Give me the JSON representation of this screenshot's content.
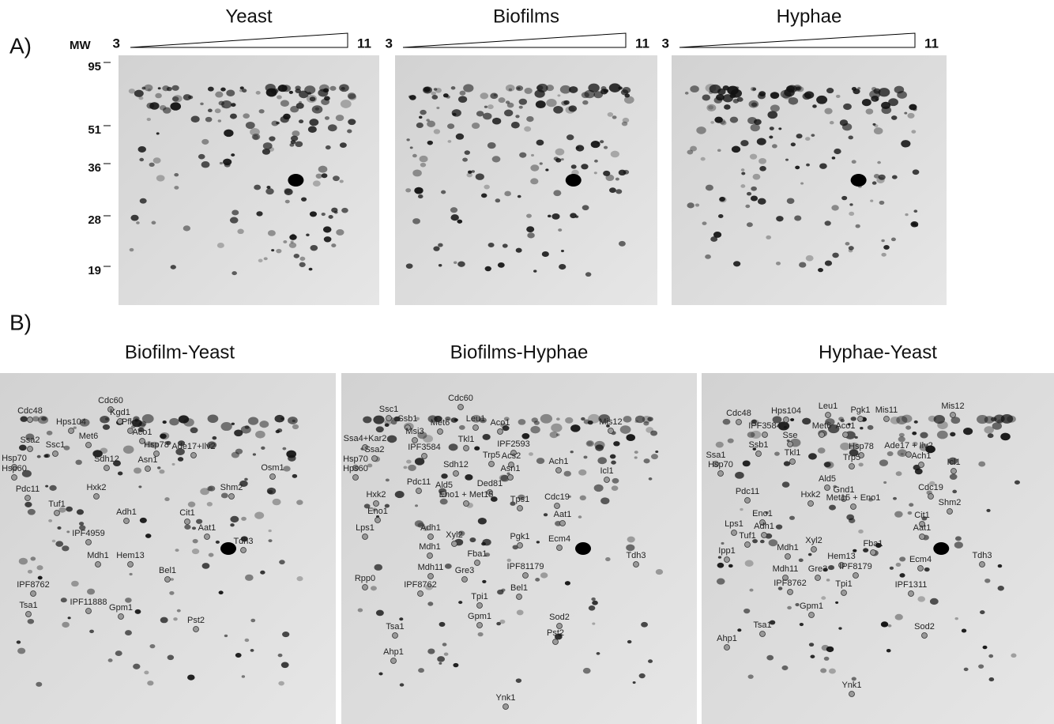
{
  "panel_a": {
    "label": "A)",
    "mw_label": "MW",
    "mw_markers": [
      "95",
      "51",
      "36",
      "28",
      "19"
    ],
    "gels": [
      {
        "title": "Yeast",
        "ph_start": "3",
        "ph_end": "11"
      },
      {
        "title": "Biofilms",
        "ph_start": "3",
        "ph_end": "11"
      },
      {
        "title": "Hyphae",
        "ph_start": "3",
        "ph_end": "11"
      }
    ]
  },
  "panel_b": {
    "label": "B)",
    "gels": [
      {
        "title": "Biofilm-Yeast",
        "spots": [
          "Cdc48",
          "Cdc60",
          "Kgd1",
          "Hps104",
          "Pfk2",
          "Met6",
          "Aco1",
          "Hsp78",
          "Ssa2",
          "Ssc1",
          "Ade17+Ilv2",
          "Sdh12",
          "Asn1",
          "Osm1",
          "Hsp70",
          "Hsp60",
          "Pdc11",
          "Hxk2",
          "Shm2",
          "Tuf1",
          "Cit1",
          "Adh1",
          "Aat1",
          "IPF4959",
          "Mdh1",
          "Hem13",
          "Tdh3",
          "IPF8762",
          "Bel1",
          "IPF11888",
          "Gpm1",
          "Tsa1",
          "Pst2"
        ]
      },
      {
        "title": "Biofilms-Hyphae",
        "spots": [
          "Cdc60",
          "Ssc1",
          "Ssb1",
          "Leu1",
          "Aco1",
          "Met6",
          "Mis12",
          "Ssa4+Kar2",
          "Msi3",
          "Tkl1",
          "IPF2593",
          "Ssa2",
          "IPF3584",
          "Trp5",
          "Acs2",
          "Hsp70",
          "Sdh12",
          "Asn1",
          "Ach1",
          "Icl1",
          "Hps60",
          "Pdc11",
          "Ald5",
          "Ded81",
          "Hxk2",
          "Eno1 + Met15",
          "Tps1",
          "Cdc19",
          "Eno1",
          "Aat1",
          "Adh1",
          "Lps1",
          "Xyl2",
          "Pgk1",
          "Ecm4",
          "Mdh1",
          "Fba1",
          "Tdh3",
          "Mdh11",
          "Gre3",
          "IPF81179",
          "Rpp0",
          "IPF8762",
          "Bel1",
          "Tpi1",
          "Gpm1",
          "Sod2",
          "Pst2",
          "Tsa1",
          "Ahp1",
          "Ynk1"
        ]
      },
      {
        "title": "Hyphae-Yeast",
        "spots": [
          "Leu1",
          "Pgk1",
          "Mis11",
          "Mis12",
          "Cdc48",
          "Hps104",
          "IPF3584",
          "Met6",
          "Aco1",
          "Sse",
          "Hsp78",
          "Ssb1",
          "Tkl1",
          "Trp5",
          "Ade17 + Ilv2",
          "Ach1",
          "Icl1",
          "Ssa1",
          "Hsp70",
          "Ald5",
          "Cdc19",
          "Gnd1",
          "Pdc11",
          "Hxk2",
          "Met15 + Eno1",
          "Shm2",
          "Eno1",
          "Cit1",
          "Adh1",
          "Lps1",
          "Aat1",
          "Tuf1",
          "Fba1",
          "Ipp1",
          "Mdh1",
          "Xyl2",
          "Hem13",
          "Ecm4",
          "Tdh3",
          "Mdh11",
          "Gre3",
          "IPF8179",
          "IPF8762",
          "IPF1311",
          "Tpi1",
          "Gpm1",
          "Sod2",
          "Tsa1",
          "Ahp1",
          "Ynk1"
        ]
      }
    ]
  }
}
